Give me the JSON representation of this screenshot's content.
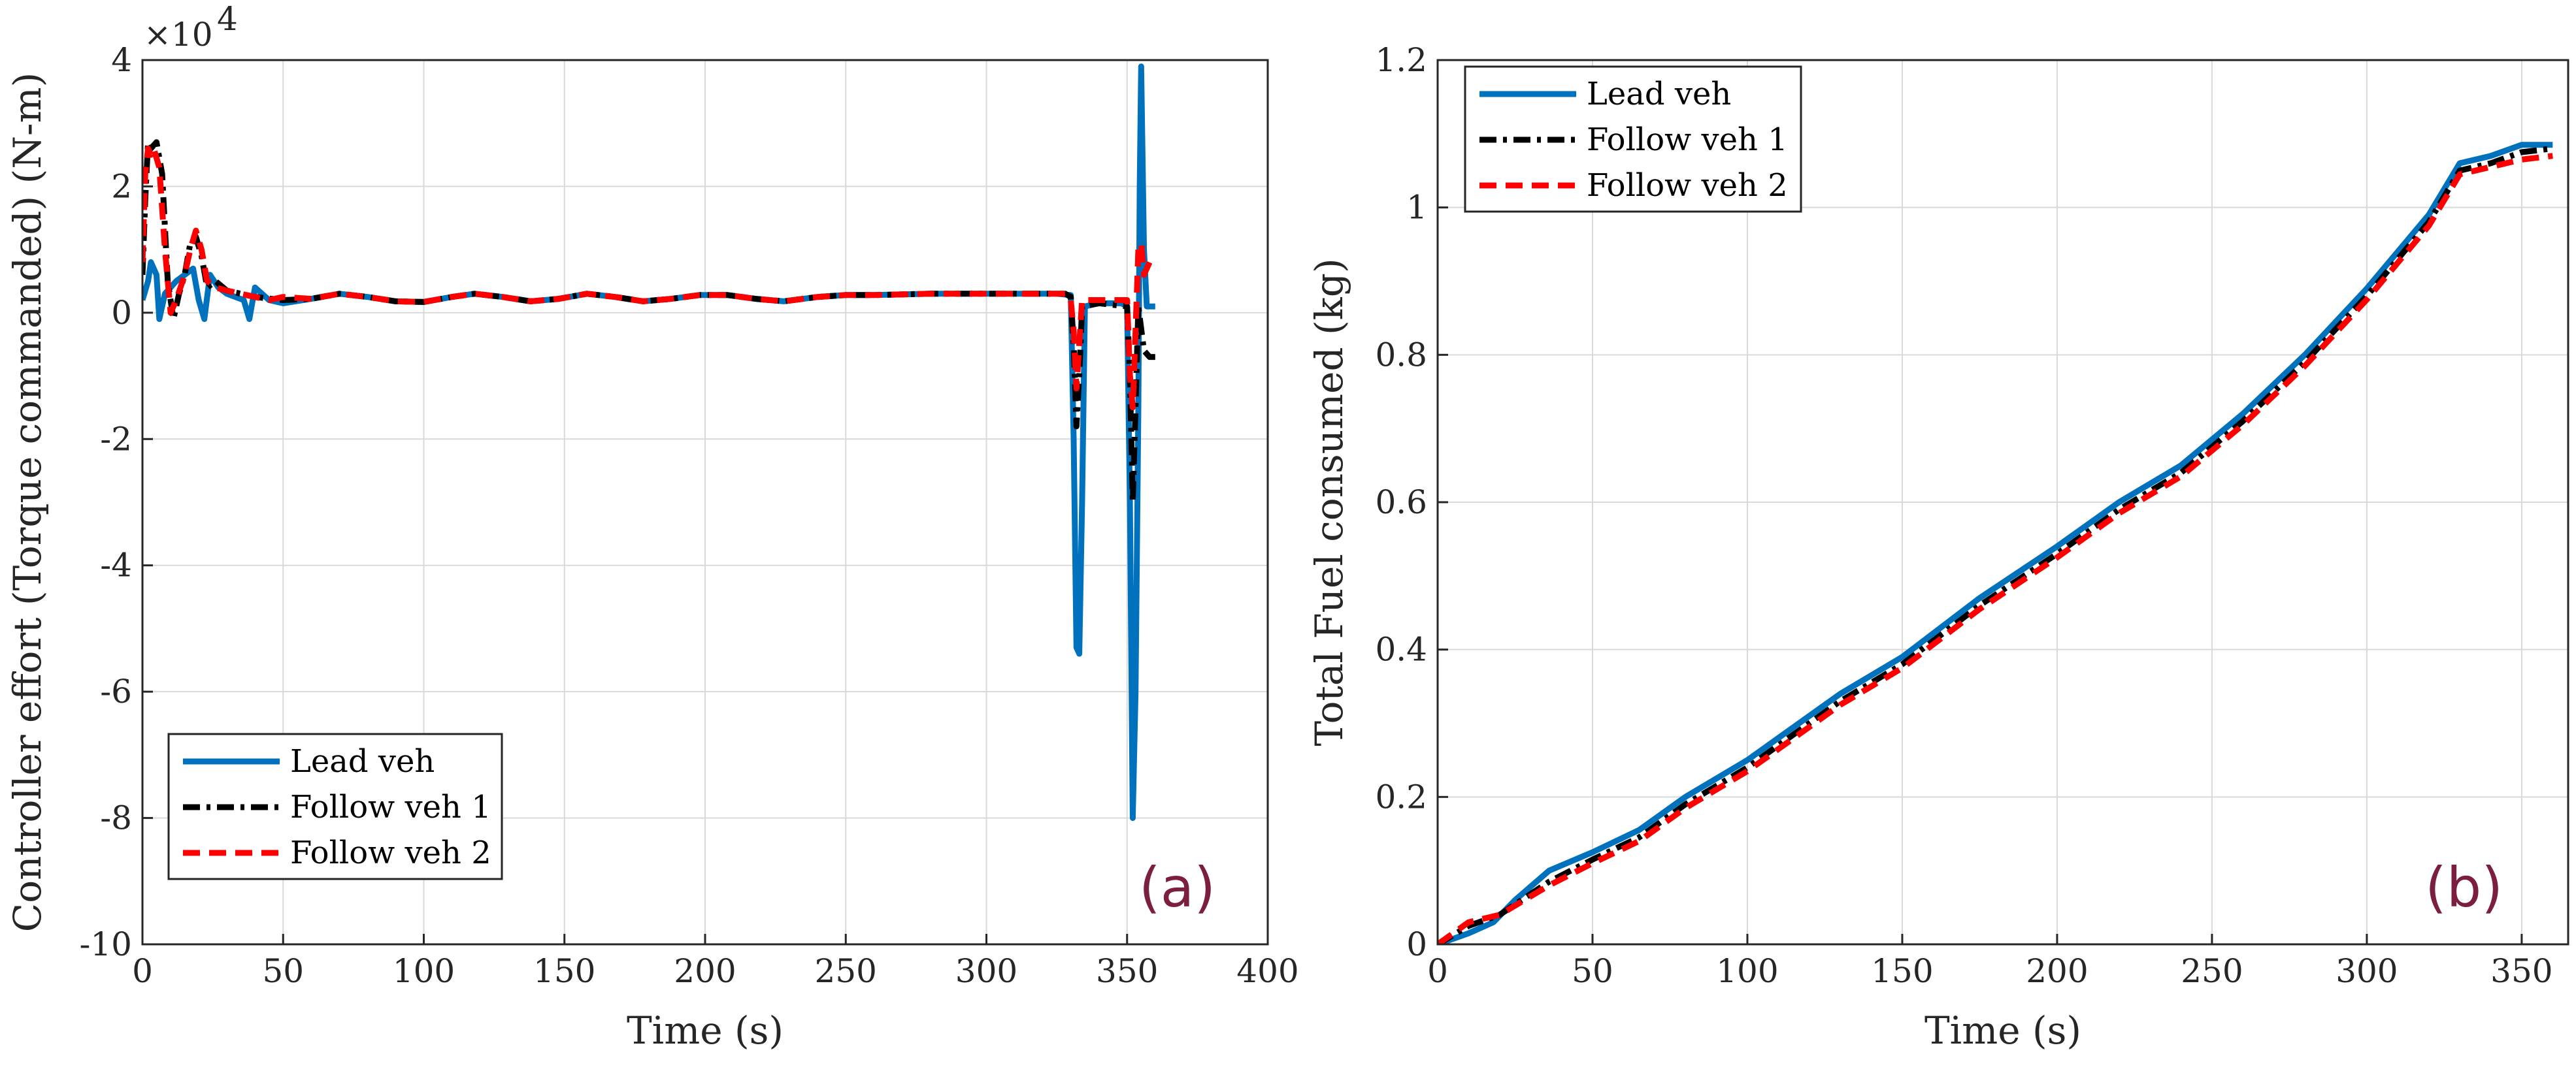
{
  "chart_data": [
    {
      "type": "line",
      "tag": "(a)",
      "xlabel": "Time (s)",
      "ylabel": "Controller effort (Torque commanded) (N-m)",
      "y_multiplier": "×10",
      "y_multiplier_exponent": "4",
      "xlim": [
        0,
        400
      ],
      "ylim": [
        -10,
        4
      ],
      "xticks": [
        0,
        50,
        100,
        150,
        200,
        250,
        300,
        350,
        400
      ],
      "yticks": [
        -10,
        -8,
        -6,
        -4,
        -2,
        0,
        2,
        4
      ],
      "legend_position": "bottom-left",
      "series": [
        {
          "name": "Lead veh",
          "color": "#0072BD",
          "style": "solid",
          "points": [
            [
              0,
              0.2
            ],
            [
              2,
              0.5
            ],
            [
              3,
              0.8
            ],
            [
              5,
              0.6
            ],
            [
              6,
              -0.1
            ],
            [
              8,
              0.3
            ],
            [
              12,
              0.5
            ],
            [
              18,
              0.7
            ],
            [
              20,
              0.2
            ],
            [
              22,
              -0.1
            ],
            [
              24,
              0.6
            ],
            [
              27,
              0.4
            ],
            [
              30,
              0.3
            ],
            [
              36,
              0.2
            ],
            [
              38,
              -0.1
            ],
            [
              40,
              0.4
            ],
            [
              45,
              0.2
            ],
            [
              50,
              0.15
            ],
            [
              60,
              0.22
            ],
            [
              70,
              0.3
            ],
            [
              80,
              0.25
            ],
            [
              90,
              0.18
            ],
            [
              100,
              0.17
            ],
            [
              110,
              0.25
            ],
            [
              118,
              0.3
            ],
            [
              128,
              0.25
            ],
            [
              138,
              0.18
            ],
            [
              148,
              0.22
            ],
            [
              158,
              0.3
            ],
            [
              168,
              0.25
            ],
            [
              178,
              0.18
            ],
            [
              188,
              0.22
            ],
            [
              198,
              0.28
            ],
            [
              208,
              0.28
            ],
            [
              218,
              0.22
            ],
            [
              228,
              0.18
            ],
            [
              240,
              0.25
            ],
            [
              250,
              0.28
            ],
            [
              260,
              0.28
            ],
            [
              280,
              0.3
            ],
            [
              300,
              0.3
            ],
            [
              325,
              0.3
            ],
            [
              330,
              0.28
            ],
            [
              331,
              -2.0
            ],
            [
              332,
              -5.3
            ],
            [
              333,
              -5.4
            ],
            [
              334,
              -3.0
            ],
            [
              335,
              0.1
            ],
            [
              340,
              0.15
            ],
            [
              348,
              0.15
            ],
            [
              350,
              0.1
            ],
            [
              351,
              -3.0
            ],
            [
              352,
              -8.0
            ],
            [
              353,
              -6.0
            ],
            [
              354,
              -1.5
            ],
            [
              354.5,
              2.0
            ],
            [
              355,
              3.9
            ],
            [
              356,
              1.0
            ],
            [
              357,
              0.1
            ],
            [
              360,
              0.1
            ]
          ]
        },
        {
          "name": "Follow veh 1",
          "color": "#000000",
          "style": "dashdot",
          "points": [
            [
              0,
              0.6
            ],
            [
              1,
              1.8
            ],
            [
              2,
              2.7
            ],
            [
              3,
              2.6
            ],
            [
              5,
              2.7
            ],
            [
              7,
              2.2
            ],
            [
              9,
              0.5
            ],
            [
              11,
              -0.1
            ],
            [
              13,
              0.3
            ],
            [
              15,
              0.6
            ],
            [
              17,
              1.1
            ],
            [
              19,
              1.2
            ],
            [
              21,
              0.9
            ],
            [
              23,
              0.4
            ],
            [
              26,
              0.5
            ],
            [
              30,
              0.35
            ],
            [
              35,
              0.3
            ],
            [
              40,
              0.25
            ],
            [
              50,
              0.2
            ],
            [
              60,
              0.22
            ],
            [
              70,
              0.3
            ],
            [
              80,
              0.25
            ],
            [
              90,
              0.18
            ],
            [
              100,
              0.17
            ],
            [
              110,
              0.25
            ],
            [
              118,
              0.3
            ],
            [
              128,
              0.25
            ],
            [
              138,
              0.18
            ],
            [
              148,
              0.22
            ],
            [
              158,
              0.3
            ],
            [
              168,
              0.25
            ],
            [
              178,
              0.18
            ],
            [
              188,
              0.22
            ],
            [
              198,
              0.28
            ],
            [
              208,
              0.28
            ],
            [
              218,
              0.22
            ],
            [
              228,
              0.18
            ],
            [
              240,
              0.25
            ],
            [
              250,
              0.28
            ],
            [
              260,
              0.28
            ],
            [
              280,
              0.3
            ],
            [
              300,
              0.3
            ],
            [
              328,
              0.3
            ],
            [
              330,
              0.25
            ],
            [
              331,
              -0.5
            ],
            [
              332,
              -1.8
            ],
            [
              333,
              -1.0
            ],
            [
              334,
              0.1
            ],
            [
              340,
              0.15
            ],
            [
              350,
              0.1
            ],
            [
              351,
              -1.0
            ],
            [
              352,
              -3.0
            ],
            [
              353,
              -1.5
            ],
            [
              354,
              0.1
            ],
            [
              356,
              -0.6
            ],
            [
              358,
              -0.7
            ],
            [
              360,
              -0.7
            ]
          ]
        },
        {
          "name": "Follow veh 2",
          "color": "#FF0000",
          "style": "dashed",
          "points": [
            [
              0,
              0.8
            ],
            [
              1,
              2.2
            ],
            [
              2,
              2.6
            ],
            [
              3,
              2.5
            ],
            [
              4,
              2.6
            ],
            [
              6,
              2.3
            ],
            [
              8,
              1.0
            ],
            [
              10,
              0.0
            ],
            [
              12,
              0.2
            ],
            [
              15,
              0.6
            ],
            [
              17,
              1.0
            ],
            [
              19,
              1.3
            ],
            [
              21,
              1.0
            ],
            [
              23,
              0.5
            ],
            [
              26,
              0.4
            ],
            [
              30,
              0.35
            ],
            [
              35,
              0.3
            ],
            [
              40,
              0.25
            ],
            [
              45,
              0.2
            ],
            [
              50,
              0.25
            ],
            [
              60,
              0.22
            ],
            [
              70,
              0.3
            ],
            [
              80,
              0.25
            ],
            [
              90,
              0.18
            ],
            [
              100,
              0.17
            ],
            [
              110,
              0.25
            ],
            [
              118,
              0.3
            ],
            [
              128,
              0.25
            ],
            [
              138,
              0.18
            ],
            [
              148,
              0.22
            ],
            [
              158,
              0.3
            ],
            [
              168,
              0.25
            ],
            [
              178,
              0.18
            ],
            [
              188,
              0.22
            ],
            [
              198,
              0.28
            ],
            [
              208,
              0.28
            ],
            [
              218,
              0.22
            ],
            [
              228,
              0.18
            ],
            [
              240,
              0.25
            ],
            [
              250,
              0.28
            ],
            [
              260,
              0.28
            ],
            [
              280,
              0.3
            ],
            [
              300,
              0.3
            ],
            [
              328,
              0.3
            ],
            [
              330,
              0.2
            ],
            [
              331,
              -0.3
            ],
            [
              332,
              -1.2
            ],
            [
              333,
              -0.5
            ],
            [
              334,
              0.2
            ],
            [
              340,
              0.2
            ],
            [
              350,
              0.2
            ],
            [
              351,
              -1.0
            ],
            [
              352,
              -1.5
            ],
            [
              353,
              -0.3
            ],
            [
              354,
              1.0
            ],
            [
              355,
              1.1
            ],
            [
              356,
              0.6
            ],
            [
              358,
              0.8
            ],
            [
              360,
              0.8
            ]
          ]
        }
      ]
    },
    {
      "type": "line",
      "tag": "(b)",
      "xlabel": "Time (s)",
      "ylabel": "Total Fuel consumed (kg)",
      "xlim": [
        0,
        365
      ],
      "ylim": [
        0,
        1.2
      ],
      "xticks": [
        0,
        50,
        100,
        150,
        200,
        250,
        300,
        350
      ],
      "ytick_labels": [
        "0",
        "0.2",
        "0.4",
        "0.6",
        "0.8",
        "1",
        "1.2"
      ],
      "yticks": [
        0,
        0.2,
        0.4,
        0.6,
        0.8,
        1.0,
        1.2
      ],
      "legend_position": "top-left",
      "series": [
        {
          "name": "Lead veh",
          "color": "#0072BD",
          "style": "solid",
          "points": [
            [
              0,
              0
            ],
            [
              10,
              0.015
            ],
            [
              18,
              0.03
            ],
            [
              25,
              0.06
            ],
            [
              36,
              0.1
            ],
            [
              50,
              0.125
            ],
            [
              65,
              0.155
            ],
            [
              80,
              0.2
            ],
            [
              100,
              0.25
            ],
            [
              110,
              0.28
            ],
            [
              130,
              0.34
            ],
            [
              150,
              0.39
            ],
            [
              175,
              0.47
            ],
            [
              200,
              0.54
            ],
            [
              220,
              0.6
            ],
            [
              240,
              0.65
            ],
            [
              260,
              0.72
            ],
            [
              280,
              0.8
            ],
            [
              300,
              0.89
            ],
            [
              320,
              0.99
            ],
            [
              330,
              1.06
            ],
            [
              340,
              1.07
            ],
            [
              350,
              1.085
            ],
            [
              360,
              1.085
            ]
          ]
        },
        {
          "name": "Follow veh 1",
          "color": "#000000",
          "style": "dashdot",
          "points": [
            [
              0,
              0
            ],
            [
              10,
              0.025
            ],
            [
              20,
              0.04
            ],
            [
              36,
              0.085
            ],
            [
              50,
              0.115
            ],
            [
              65,
              0.145
            ],
            [
              80,
              0.19
            ],
            [
              100,
              0.24
            ],
            [
              110,
              0.27
            ],
            [
              130,
              0.33
            ],
            [
              150,
              0.38
            ],
            [
              175,
              0.46
            ],
            [
              200,
              0.53
            ],
            [
              220,
              0.59
            ],
            [
              240,
              0.64
            ],
            [
              260,
              0.71
            ],
            [
              280,
              0.79
            ],
            [
              300,
              0.88
            ],
            [
              320,
              0.98
            ],
            [
              330,
              1.05
            ],
            [
              340,
              1.06
            ],
            [
              350,
              1.075
            ],
            [
              360,
              1.08
            ]
          ]
        },
        {
          "name": "Follow veh 2",
          "color": "#FF0000",
          "style": "dashed",
          "points": [
            [
              0,
              0
            ],
            [
              10,
              0.03
            ],
            [
              20,
              0.04
            ],
            [
              36,
              0.08
            ],
            [
              50,
              0.11
            ],
            [
              65,
              0.14
            ],
            [
              80,
              0.185
            ],
            [
              100,
              0.235
            ],
            [
              110,
              0.265
            ],
            [
              130,
              0.325
            ],
            [
              150,
              0.375
            ],
            [
              175,
              0.455
            ],
            [
              200,
              0.525
            ],
            [
              220,
              0.585
            ],
            [
              240,
              0.635
            ],
            [
              260,
              0.705
            ],
            [
              280,
              0.785
            ],
            [
              300,
              0.875
            ],
            [
              320,
              0.975
            ],
            [
              330,
              1.045
            ],
            [
              340,
              1.055
            ],
            [
              350,
              1.065
            ],
            [
              360,
              1.07
            ]
          ]
        }
      ]
    }
  ]
}
